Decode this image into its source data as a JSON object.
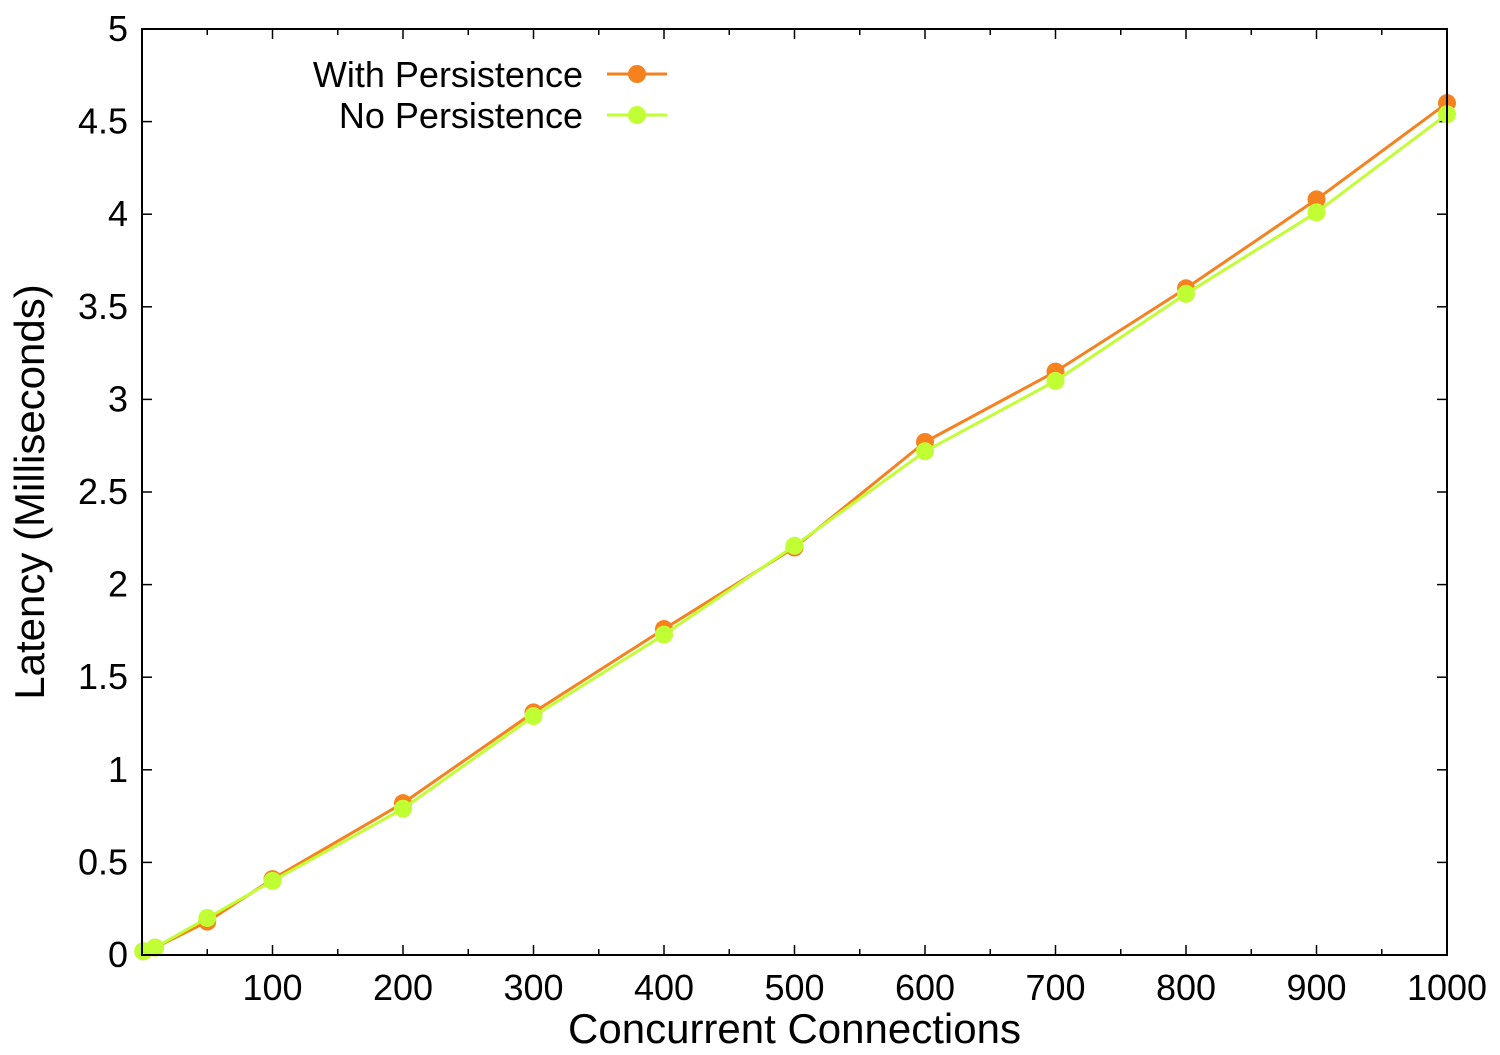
{
  "chart_data": {
    "type": "line",
    "xlabel": "Concurrent Connections",
    "ylabel": "Latency (Milliseconds)",
    "xlim": [
      0,
      1000
    ],
    "ylim": [
      0,
      5
    ],
    "x_ticks": [
      100,
      200,
      300,
      400,
      500,
      600,
      700,
      800,
      900,
      1000
    ],
    "x_tick_labels": [
      "100",
      "200",
      "300",
      "400",
      "500",
      "600",
      "700",
      "800",
      "900",
      "1000"
    ],
    "y_ticks": [
      0,
      0.5,
      1,
      1.5,
      2,
      2.5,
      3,
      3.5,
      4,
      4.5,
      5
    ],
    "y_tick_labels": [
      "0",
      "0.5",
      "1",
      "1.5",
      "2",
      "2.5",
      "3",
      "3.5",
      "4",
      "4.5",
      "5"
    ],
    "grid": false,
    "legend_position": "top-left",
    "series": [
      {
        "name": "With Persistence",
        "color": "#f5821f",
        "x": [
          1,
          10,
          50,
          100,
          200,
          300,
          400,
          500,
          600,
          700,
          800,
          900,
          1000
        ],
        "values": [
          0.02,
          0.04,
          0.18,
          0.41,
          0.82,
          1.31,
          1.76,
          2.2,
          2.77,
          3.15,
          3.6,
          4.08,
          4.6
        ]
      },
      {
        "name": "No Persistence",
        "color": "#c0ff33",
        "x": [
          1,
          10,
          50,
          100,
          200,
          300,
          400,
          500,
          600,
          700,
          800,
          900,
          1000
        ],
        "values": [
          0.02,
          0.04,
          0.2,
          0.4,
          0.79,
          1.29,
          1.73,
          2.21,
          2.72,
          3.1,
          3.57,
          4.01,
          4.54
        ]
      }
    ]
  }
}
